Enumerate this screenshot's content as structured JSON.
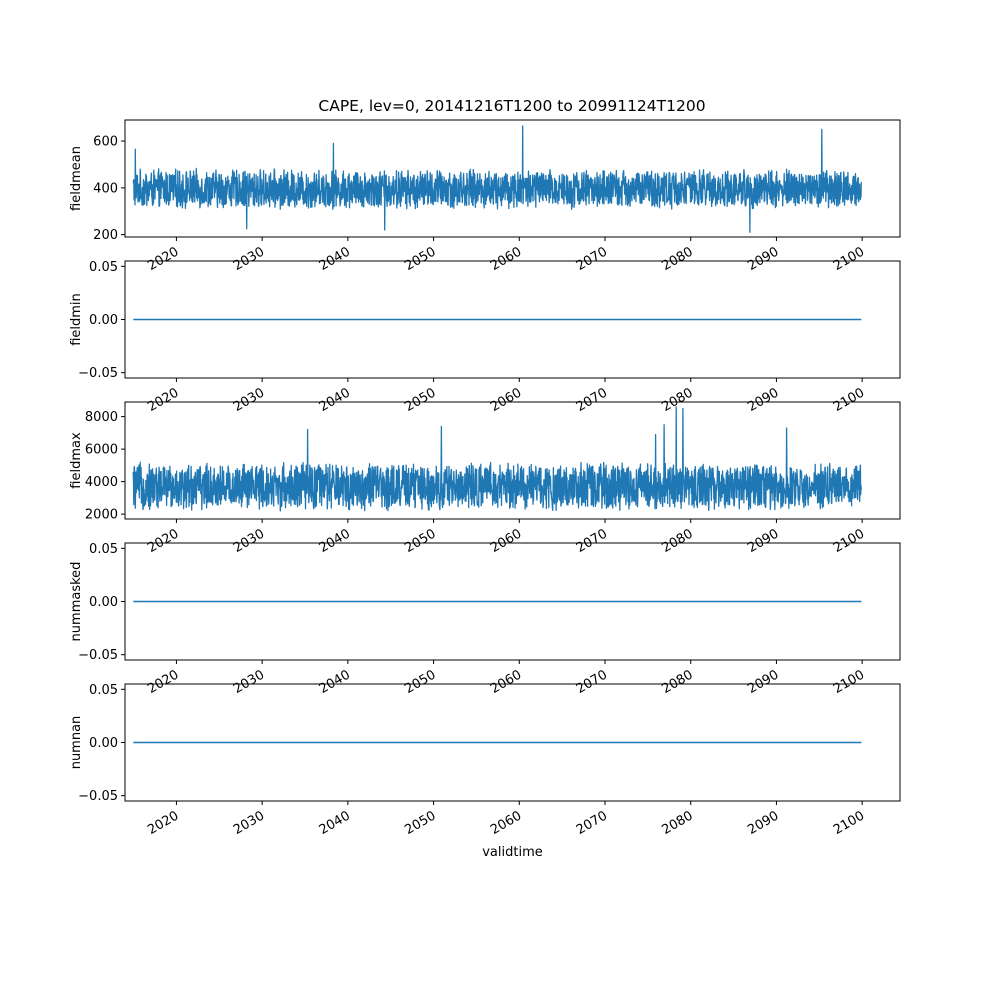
{
  "title": "CAPE, lev=0, 20141216T1200 to 20991124T1200",
  "colors": {
    "series": "#1f77b4"
  },
  "chart_data": [
    {
      "type": "line",
      "ylabel": "fieldmean",
      "xlabel": "",
      "xlim": [
        "2014-01-01",
        "2104-06-01"
      ],
      "ylim": [
        190,
        690
      ],
      "x_range": [
        "2014-12-16",
        "2099-11-24"
      ],
      "yticks": [
        200,
        400,
        600
      ],
      "ytick_labels": [
        "200",
        "400",
        "600"
      ],
      "xtick_years": [
        2020,
        2030,
        2040,
        2050,
        2060,
        2070,
        2080,
        2090,
        2100
      ],
      "xtick_labels": [
        "2020",
        "2030",
        "2040",
        "2050",
        "2060",
        "2070",
        "2080",
        "2090",
        "2100"
      ],
      "grid": false,
      "series": [
        {
          "kind": "band",
          "base": 395,
          "swing": 75,
          "peaks": [
            [
              2015.2,
              565
            ],
            [
              2038.3,
              590
            ],
            [
              2060.4,
              665
            ],
            [
              2095.3,
              650
            ],
            [
              2086.9,
              210
            ],
            [
              2044.3,
              220
            ],
            [
              2028.2,
              225
            ]
          ]
        }
      ]
    },
    {
      "type": "line",
      "ylabel": "fieldmin",
      "xlabel": "",
      "xlim": [
        "2014-01-01",
        "2104-06-01"
      ],
      "ylim": [
        -0.055,
        0.055
      ],
      "x_range": [
        "2014-12-16",
        "2099-11-24"
      ],
      "yticks": [
        -0.05,
        0.0,
        0.05
      ],
      "ytick_labels": [
        "−0.05",
        "0.00",
        "0.05"
      ],
      "xtick_years": [
        2020,
        2030,
        2040,
        2050,
        2060,
        2070,
        2080,
        2090,
        2100
      ],
      "xtick_labels": [
        "2020",
        "2030",
        "2040",
        "2050",
        "2060",
        "2070",
        "2080",
        "2090",
        "2100"
      ],
      "grid": false,
      "series": [
        {
          "kind": "constant",
          "value": 0.0
        }
      ]
    },
    {
      "type": "line",
      "ylabel": "fieldmax",
      "xlabel": "",
      "xlim": [
        "2014-01-01",
        "2104-06-01"
      ],
      "ylim": [
        1700,
        8900
      ],
      "x_range": [
        "2014-12-16",
        "2099-11-24"
      ],
      "yticks": [
        2000,
        4000,
        6000,
        8000
      ],
      "ytick_labels": [
        "2000",
        "4000",
        "6000",
        "8000"
      ],
      "xtick_years": [
        2020,
        2030,
        2040,
        2050,
        2060,
        2070,
        2080,
        2090,
        2100
      ],
      "xtick_labels": [
        "2020",
        "2030",
        "2040",
        "2050",
        "2060",
        "2070",
        "2080",
        "2090",
        "2100"
      ],
      "grid": false,
      "series": [
        {
          "kind": "band",
          "base": 3700,
          "swing": 1300,
          "peaks": [
            [
              2035.3,
              7200
            ],
            [
              2050.9,
              7400
            ],
            [
              2076.9,
              7500
            ],
            [
              2078.3,
              8600
            ],
            [
              2079.1,
              8500
            ],
            [
              2091.2,
              7300
            ],
            [
              2075.9,
              6900
            ]
          ]
        }
      ]
    },
    {
      "type": "line",
      "ylabel": "nummasked",
      "xlabel": "",
      "xlim": [
        "2014-01-01",
        "2104-06-01"
      ],
      "ylim": [
        -0.055,
        0.055
      ],
      "x_range": [
        "2014-12-16",
        "2099-11-24"
      ],
      "yticks": [
        -0.05,
        0.0,
        0.05
      ],
      "ytick_labels": [
        "−0.05",
        "0.00",
        "0.05"
      ],
      "xtick_years": [
        2020,
        2030,
        2040,
        2050,
        2060,
        2070,
        2080,
        2090,
        2100
      ],
      "xtick_labels": [
        "2020",
        "2030",
        "2040",
        "2050",
        "2060",
        "2070",
        "2080",
        "2090",
        "2100"
      ],
      "grid": false,
      "series": [
        {
          "kind": "constant",
          "value": 0.0
        }
      ]
    },
    {
      "type": "line",
      "ylabel": "numnan",
      "xlabel": "validtime",
      "xlim": [
        "2014-01-01",
        "2104-06-01"
      ],
      "ylim": [
        -0.055,
        0.055
      ],
      "x_range": [
        "2014-12-16",
        "2099-11-24"
      ],
      "yticks": [
        -0.05,
        0.0,
        0.05
      ],
      "ytick_labels": [
        "−0.05",
        "0.00",
        "0.05"
      ],
      "xtick_years": [
        2020,
        2030,
        2040,
        2050,
        2060,
        2070,
        2080,
        2090,
        2100
      ],
      "xtick_labels": [
        "2020",
        "2030",
        "2040",
        "2050",
        "2060",
        "2070",
        "2080",
        "2090",
        "2100"
      ],
      "grid": false,
      "series": [
        {
          "kind": "constant",
          "value": 0.0
        }
      ]
    }
  ]
}
